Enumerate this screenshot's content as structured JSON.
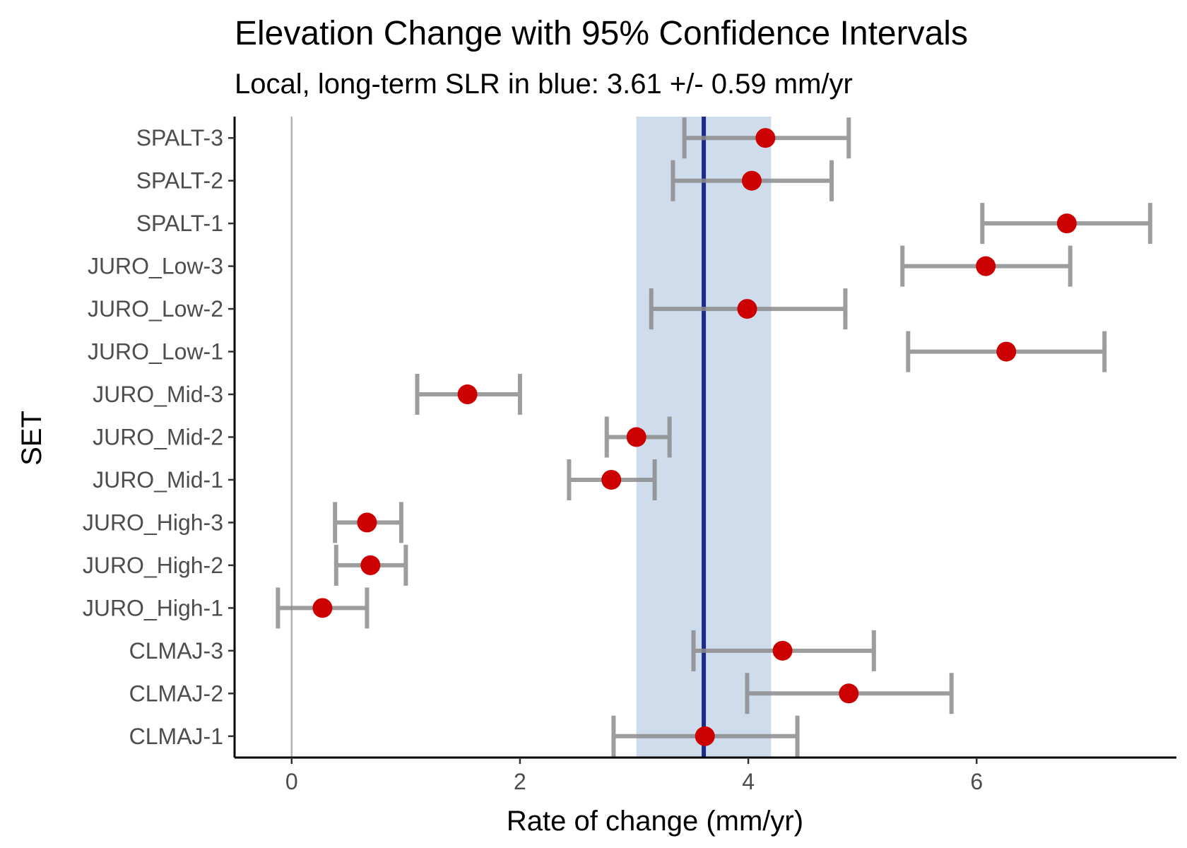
{
  "chart_data": {
    "type": "scatter",
    "title": "Elevation Change with 95% Confidence Intervals",
    "subtitle": "Local, long-term SLR in blue: 3.61 +/- 0.59 mm/yr",
    "xlabel": "Rate of change (mm/yr)",
    "ylabel": "SET",
    "xlim": [
      -0.5,
      7.75
    ],
    "x_ticks": [
      0,
      2,
      4,
      6
    ],
    "categories": [
      "CLMAJ-1",
      "CLMAJ-2",
      "CLMAJ-3",
      "JURO_High-1",
      "JURO_High-2",
      "JURO_High-3",
      "JURO_Mid-1",
      "JURO_Mid-2",
      "JURO_Mid-3",
      "JURO_Low-1",
      "JURO_Low-2",
      "JURO_Low-3",
      "SPALT-1",
      "SPALT-2",
      "SPALT-3"
    ],
    "values": [
      3.62,
      4.88,
      4.3,
      0.27,
      0.69,
      0.66,
      2.8,
      3.02,
      1.54,
      6.26,
      3.99,
      6.08,
      6.79,
      4.03,
      4.15
    ],
    "ci_low": [
      2.82,
      3.99,
      3.52,
      -0.12,
      0.39,
      0.38,
      2.43,
      2.76,
      1.1,
      5.4,
      3.15,
      5.35,
      6.05,
      3.34,
      3.44
    ],
    "ci_high": [
      4.43,
      5.78,
      5.1,
      0.66,
      1.0,
      0.96,
      3.18,
      3.31,
      2.0,
      7.12,
      4.85,
      6.82,
      7.52,
      4.73,
      4.88
    ],
    "reference_zero": 0,
    "slr_rate": 3.61,
    "slr_ci": 0.59,
    "colors": {
      "point": "#cc0000",
      "errorbar": "#8c8c8c",
      "slr_line": "#1c2a8c",
      "slr_band": "#cfdcec",
      "zero_line": "#b3b3b3",
      "axis": "#000000",
      "tick_label": "#4d4d4d"
    }
  }
}
